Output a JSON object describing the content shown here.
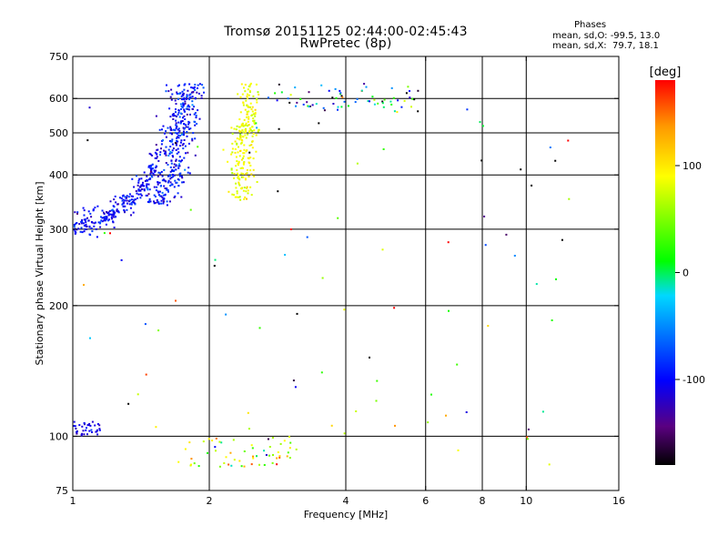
{
  "header": {
    "title": "Tromsø 20151125 02:44:00-02:45:43",
    "subtitle": "RwPretec (8p)",
    "phases_heading": "Phases",
    "phases_o": "mean, sd,O: -99.5, 13.0",
    "phases_x": "mean, sd,X:  79.7, 18.1"
  },
  "chart_data": {
    "type": "scatter",
    "title": "Tromsø 20151125 02:44:00-02:45:43",
    "subtitle": "RwPretec (8p)",
    "xlabel": "Frequency [MHz]",
    "ylabel": "Stationary phase Virtual Height [km]",
    "x_scale": "log",
    "y_scale": "log",
    "xlim": [
      1,
      16
    ],
    "ylim": [
      75,
      750
    ],
    "x_ticks": [
      1,
      2,
      4,
      6,
      8,
      10,
      16
    ],
    "x_tick_labels": [
      "1",
      "2",
      "4",
      "6",
      "8",
      "10",
      "16"
    ],
    "y_ticks": [
      75,
      100,
      200,
      300,
      400,
      500,
      600,
      750
    ],
    "y_tick_labels": [
      "75",
      "100",
      "200",
      "300",
      "400",
      "500",
      "600",
      "750"
    ],
    "grid": true,
    "colorbar": {
      "label": "[deg]",
      "range": [
        -180,
        180
      ],
      "ticks": [
        -100,
        0,
        100
      ],
      "tick_labels": [
        "-100",
        "0",
        "100"
      ],
      "colors": [
        "#000000",
        "#5a0080",
        "#0000ff",
        "#00d8ff",
        "#00ff00",
        "#ffff00",
        "#ff9900",
        "#ff0000"
      ]
    },
    "point_groups": [
      {
        "desc": "O-mode F trace lower branch",
        "x_range": [
          1.0,
          1.55
        ],
        "y_func": "cusp",
        "phase": -100,
        "phase_sd": 15,
        "count": 260
      },
      {
        "desc": "O-mode F trace upper branch",
        "x_range": [
          1.45,
          1.9
        ],
        "y_range": [
          340,
          650
        ],
        "phase": -95,
        "phase_sd": 20,
        "count": 380
      },
      {
        "desc": "X-mode F trace",
        "x_range": [
          2.25,
          2.6
        ],
        "y_range": [
          350,
          650
        ],
        "phase": 85,
        "phase_sd": 12,
        "count": 230
      },
      {
        "desc": "High echoes",
        "x_range": [
          2.6,
          5.8
        ],
        "y_range": [
          560,
          650
        ],
        "phase": -40,
        "phase_sd": 90,
        "count": 70
      },
      {
        "desc": "E-region echoes",
        "x_range": [
          1.0,
          1.15
        ],
        "y_range": [
          100,
          108
        ],
        "phase": -110,
        "phase_sd": 10,
        "count": 40
      },
      {
        "desc": "Low sporadic echoes",
        "x_range": [
          1.7,
          3.2
        ],
        "y_range": [
          85,
          100
        ],
        "phase": 70,
        "phase_sd": 50,
        "count": 55
      },
      {
        "desc": "Scattered noise",
        "x_range": [
          1.0,
          12.5
        ],
        "y_range": [
          85,
          650
        ],
        "phase": 0,
        "phase_sd": 110,
        "count": 90
      }
    ]
  }
}
